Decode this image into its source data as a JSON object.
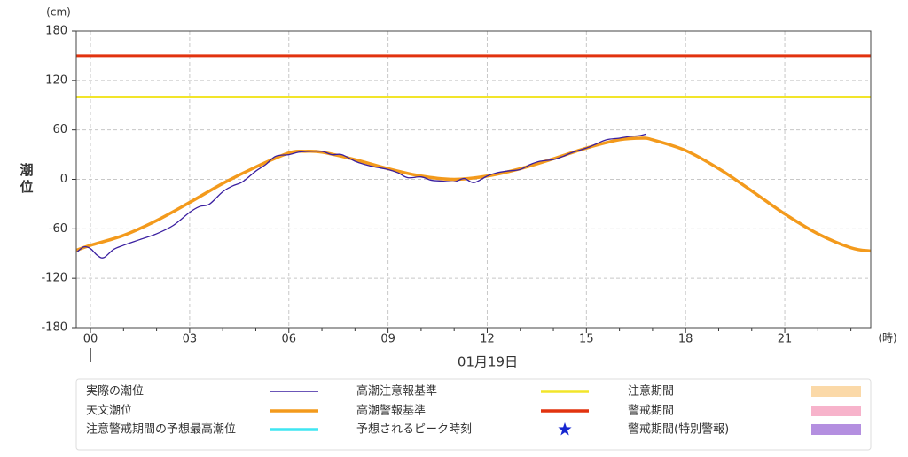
{
  "chart_data": {
    "type": "line",
    "y_label": "潮位",
    "y_unit": "(cm)",
    "x_unit": "(時)",
    "date_label": "01月19日",
    "xlim": [
      -0.43,
      23.6
    ],
    "ylim": [
      -180,
      180
    ],
    "yticks": [
      -180,
      -120,
      -60,
      0,
      60,
      120,
      180
    ],
    "xticks": [
      {
        "value": 0,
        "label": "00"
      },
      {
        "value": 3,
        "label": "03"
      },
      {
        "value": 6,
        "label": "06"
      },
      {
        "value": 9,
        "label": "09"
      },
      {
        "value": 12,
        "label": "12"
      },
      {
        "value": 15,
        "label": "15"
      },
      {
        "value": 18,
        "label": "18"
      },
      {
        "value": 21,
        "label": "21"
      }
    ],
    "xminorticks": [
      1,
      2,
      4,
      5,
      7,
      8,
      10,
      11,
      13,
      14,
      16,
      17,
      19,
      20,
      22,
      23
    ],
    "grid": true,
    "series": [
      {
        "color": "#f39a1c",
        "width": 3.5,
        "x": [
          -0.43,
          0,
          1,
          2,
          3,
          4,
          5,
          6,
          6.5,
          7,
          8,
          9,
          10,
          11,
          12,
          13,
          14,
          15,
          16,
          16.7,
          17,
          18,
          19,
          20,
          21,
          22,
          23,
          23.6
        ],
        "values": [
          -86,
          -80,
          -68,
          -50,
          -28,
          -5,
          15,
          32,
          34,
          33,
          24,
          13,
          4,
          0,
          4,
          13,
          25,
          38,
          48,
          50,
          48,
          35,
          13,
          -14,
          -42,
          -66,
          -83,
          -87
        ]
      },
      {
        "color": "#3a1fa0",
        "width": 1.3,
        "x": [
          -0.4,
          -0.2,
          0,
          0.2,
          0.4,
          0.7,
          1,
          1.5,
          2,
          2.5,
          3,
          3.3,
          3.6,
          4,
          4.3,
          4.6,
          5,
          5.3,
          5.6,
          6,
          6.3,
          6.6,
          7,
          7.3,
          7.6,
          8,
          8.3,
          8.6,
          9,
          9.3,
          9.6,
          10,
          10.3,
          10.6,
          11,
          11.3,
          11.6,
          12,
          12.3,
          12.6,
          13,
          13.3,
          13.6,
          14,
          14.3,
          14.6,
          15,
          15.3,
          15.6,
          16,
          16.3,
          16.6,
          16.8
        ],
        "values": [
          -88,
          -82,
          -84,
          -92,
          -95,
          -85,
          -80,
          -73,
          -66,
          -56,
          -40,
          -33,
          -30,
          -15,
          -8,
          -3,
          10,
          18,
          28,
          30,
          33,
          34,
          34,
          30,
          30,
          22,
          18,
          15,
          12,
          8,
          2,
          3,
          -1,
          -2,
          -3,
          1,
          -4,
          4,
          8,
          10,
          12,
          18,
          22,
          24,
          28,
          33,
          38,
          43,
          48,
          50,
          52,
          53,
          55
        ]
      }
    ],
    "reference_lines": [
      {
        "value": 100,
        "color": "#f2e52a"
      },
      {
        "value": 150,
        "color": "#e2330f"
      }
    ],
    "legend": [
      {
        "label": "実際の潮位",
        "color": "#3a1fa0",
        "symbol": "thin-line"
      },
      {
        "label": "高潮注意報基準",
        "color": "#f2e52a",
        "symbol": "line"
      },
      {
        "label": "注意期間",
        "color": "#fbd9a8",
        "symbol": "box"
      },
      {
        "label": "天文潮位",
        "color": "#f39a1c",
        "symbol": "line"
      },
      {
        "label": "高潮警報基準",
        "color": "#e2330f",
        "symbol": "line"
      },
      {
        "label": "警戒期間",
        "color": "#f7b3cb",
        "symbol": "box"
      },
      {
        "label": "注意警戒期間の予想最高潮位",
        "color": "#3fe6f2",
        "symbol": "line"
      },
      {
        "label": "予想されるピーク時刻",
        "color": "#1626d0",
        "symbol": "star"
      },
      {
        "label": "警戒期間(特別警報)",
        "color": "#b48fe0",
        "symbol": "box"
      }
    ]
  }
}
